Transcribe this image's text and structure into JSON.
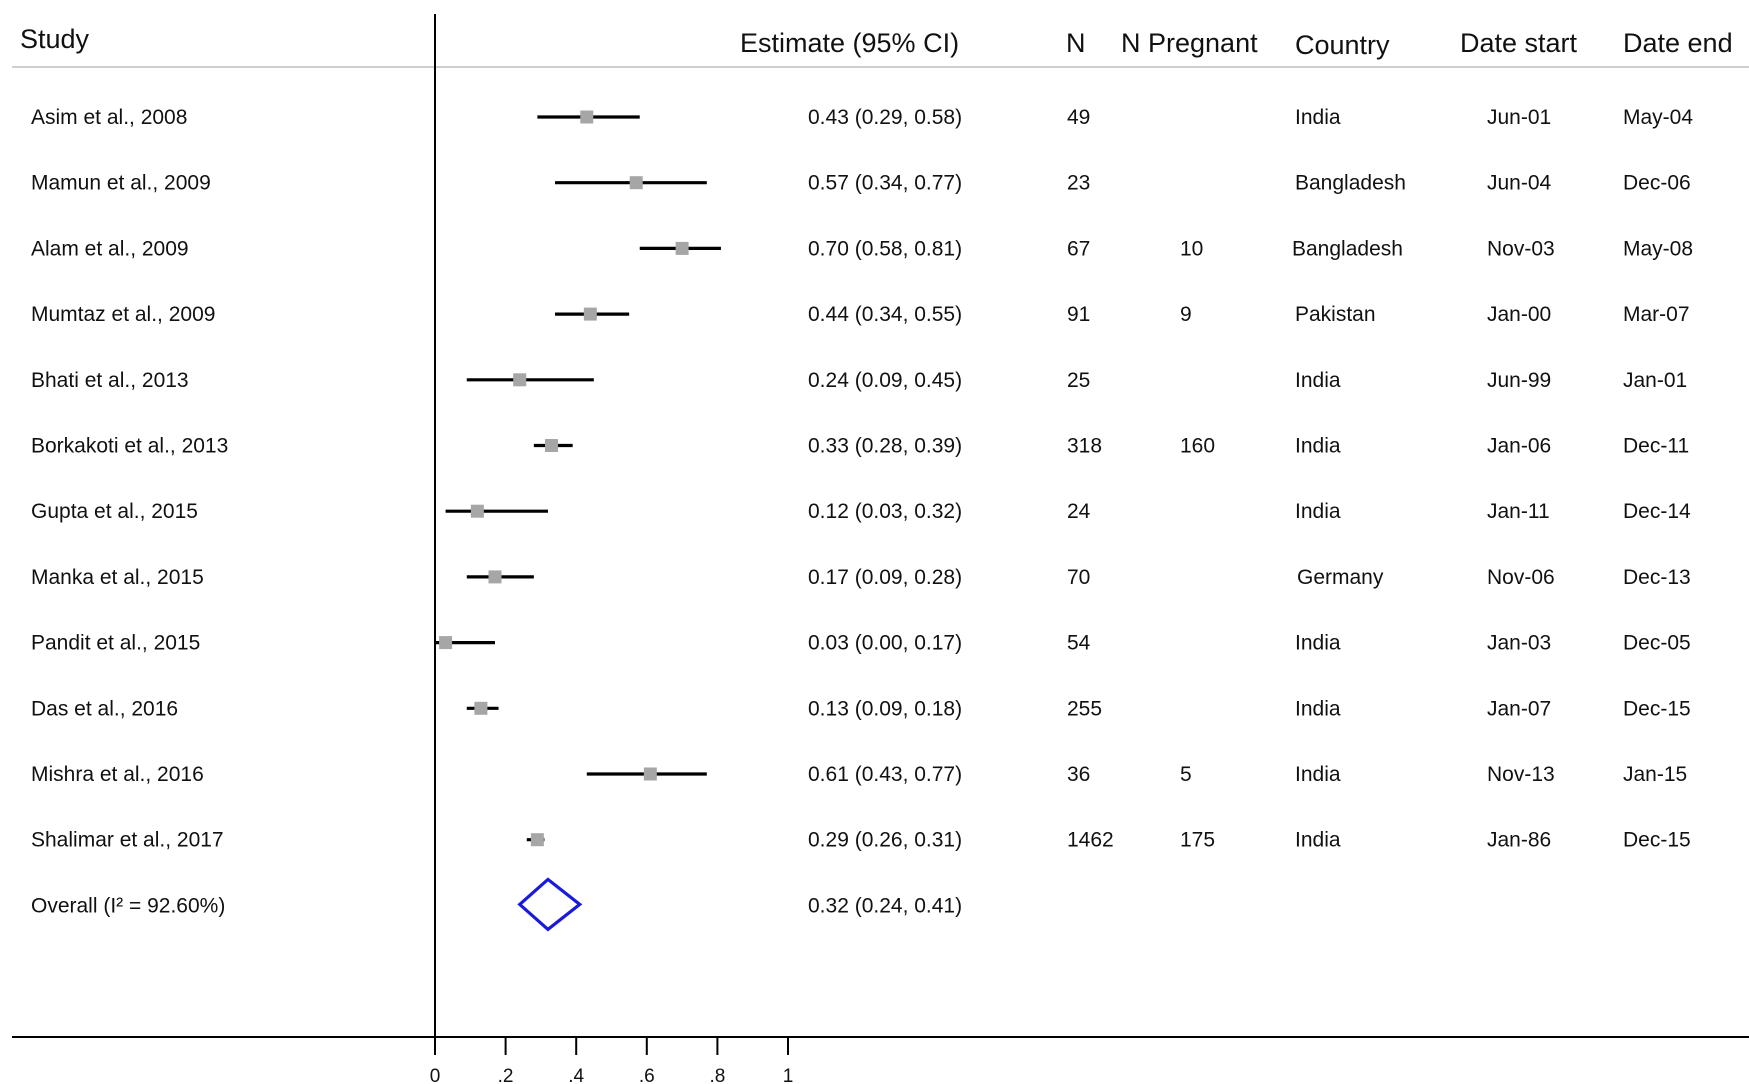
{
  "headers": {
    "study": "Study",
    "estimate": "Estimate (95% CI)",
    "n": "N",
    "n_pregnant": "N Pregnant",
    "country": "Country",
    "date_start": "Date start",
    "date_end": "Date end"
  },
  "rows": [
    {
      "study": "Asim et al., 2008",
      "estimate_text": "0.43 (0.29, 0.58)",
      "n": "49",
      "n_pregnant": "",
      "country": "India",
      "date_start": "Jun-01",
      "date_end": "May-04"
    },
    {
      "study": "Mamun et al., 2009",
      "estimate_text": "0.57 (0.34, 0.77)",
      "n": "23",
      "n_pregnant": "",
      "country": "Bangladesh",
      "date_start": "Jun-04",
      "date_end": "Dec-06"
    },
    {
      "study": "Alam et al., 2009",
      "estimate_text": "0.70 (0.58, 0.81)",
      "n": "67",
      "n_pregnant": "10",
      "country": "Bangladesh",
      "date_start": "Nov-03",
      "date_end": "May-08"
    },
    {
      "study": "Mumtaz et al., 2009",
      "estimate_text": "0.44 (0.34, 0.55)",
      "n": "91",
      "n_pregnant": "9",
      "country": "Pakistan",
      "date_start": "Jan-00",
      "date_end": "Mar-07"
    },
    {
      "study": "Bhati et al., 2013",
      "estimate_text": "0.24 (0.09, 0.45)",
      "n": "25",
      "n_pregnant": "",
      "country": "India",
      "date_start": "Jun-99",
      "date_end": "Jan-01"
    },
    {
      "study": "Borkakoti et al., 2013",
      "estimate_text": "0.33 (0.28, 0.39)",
      "n": "318",
      "n_pregnant": "160",
      "country": "India",
      "date_start": "Jan-06",
      "date_end": "Dec-11"
    },
    {
      "study": "Gupta et al., 2015",
      "estimate_text": "0.12 (0.03, 0.32)",
      "n": "24",
      "n_pregnant": "",
      "country": "India",
      "date_start": "Jan-11",
      "date_end": "Dec-14"
    },
    {
      "study": "Manka et al., 2015",
      "estimate_text": "0.17 (0.09, 0.28)",
      "n": "70",
      "n_pregnant": "",
      "country": "Germany",
      "date_start": "Nov-06",
      "date_end": "Dec-13"
    },
    {
      "study": "Pandit et al., 2015",
      "estimate_text": "0.03 (0.00, 0.17)",
      "n": "54",
      "n_pregnant": "",
      "country": "India",
      "date_start": "Jan-03",
      "date_end": "Dec-05"
    },
    {
      "study": "Das et al., 2016",
      "estimate_text": "0.13 (0.09, 0.18)",
      "n": "255",
      "n_pregnant": "",
      "country": "India",
      "date_start": "Jan-07",
      "date_end": "Dec-15"
    },
    {
      "study": "Mishra et al., 2016",
      "estimate_text": "0.61 (0.43, 0.77)",
      "n": "36",
      "n_pregnant": "5",
      "country": "India",
      "date_start": "Nov-13",
      "date_end": "Jan-15"
    },
    {
      "study": "Shalimar et al., 2017",
      "estimate_text": "0.29 (0.26, 0.31)",
      "n": "1462",
      "n_pregnant": "175",
      "country": "India",
      "date_start": "Jan-86",
      "date_end": "Dec-15"
    }
  ],
  "overall": {
    "label": "Overall  (I² = 92.60%)",
    "estimate_text": "0.32 (0.24, 0.41)"
  },
  "chart_data": {
    "type": "forest",
    "title": "",
    "xlabel": "",
    "ylabel": "",
    "xlim": [
      0,
      1
    ],
    "x_ticks": [
      0,
      0.2,
      0.4,
      0.6,
      0.8,
      1
    ],
    "x_tick_labels": [
      "0",
      ".2",
      ".4",
      ".6",
      ".8",
      "1"
    ],
    "series": [
      {
        "points": [
          {
            "study": "Asim et al., 2008",
            "estimate": 0.43,
            "lower": 0.29,
            "upper": 0.58
          },
          {
            "study": "Mamun et al., 2009",
            "estimate": 0.57,
            "lower": 0.34,
            "upper": 0.77
          },
          {
            "study": "Alam et al., 2009",
            "estimate": 0.7,
            "lower": 0.58,
            "upper": 0.81
          },
          {
            "study": "Mumtaz et al., 2009",
            "estimate": 0.44,
            "lower": 0.34,
            "upper": 0.55
          },
          {
            "study": "Bhati et al., 2013",
            "estimate": 0.24,
            "lower": 0.09,
            "upper": 0.45
          },
          {
            "study": "Borkakoti et al., 2013",
            "estimate": 0.33,
            "lower": 0.28,
            "upper": 0.39
          },
          {
            "study": "Gupta et al., 2015",
            "estimate": 0.12,
            "lower": 0.03,
            "upper": 0.32
          },
          {
            "study": "Manka et al., 2015",
            "estimate": 0.17,
            "lower": 0.09,
            "upper": 0.28
          },
          {
            "study": "Pandit et al., 2015",
            "estimate": 0.03,
            "lower": 0.0,
            "upper": 0.17
          },
          {
            "study": "Das et al., 2016",
            "estimate": 0.13,
            "lower": 0.09,
            "upper": 0.18
          },
          {
            "study": "Mishra et al., 2016",
            "estimate": 0.61,
            "lower": 0.43,
            "upper": 0.77
          },
          {
            "study": "Shalimar et al., 2017",
            "estimate": 0.29,
            "lower": 0.26,
            "upper": 0.31
          }
        ]
      }
    ],
    "overall": {
      "estimate": 0.32,
      "lower": 0.24,
      "upper": 0.41
    },
    "colors": {
      "ci_line": "#000000",
      "point_marker": "#a6a6a6",
      "overall_diamond": "#1a1adb"
    },
    "grid": false
  }
}
